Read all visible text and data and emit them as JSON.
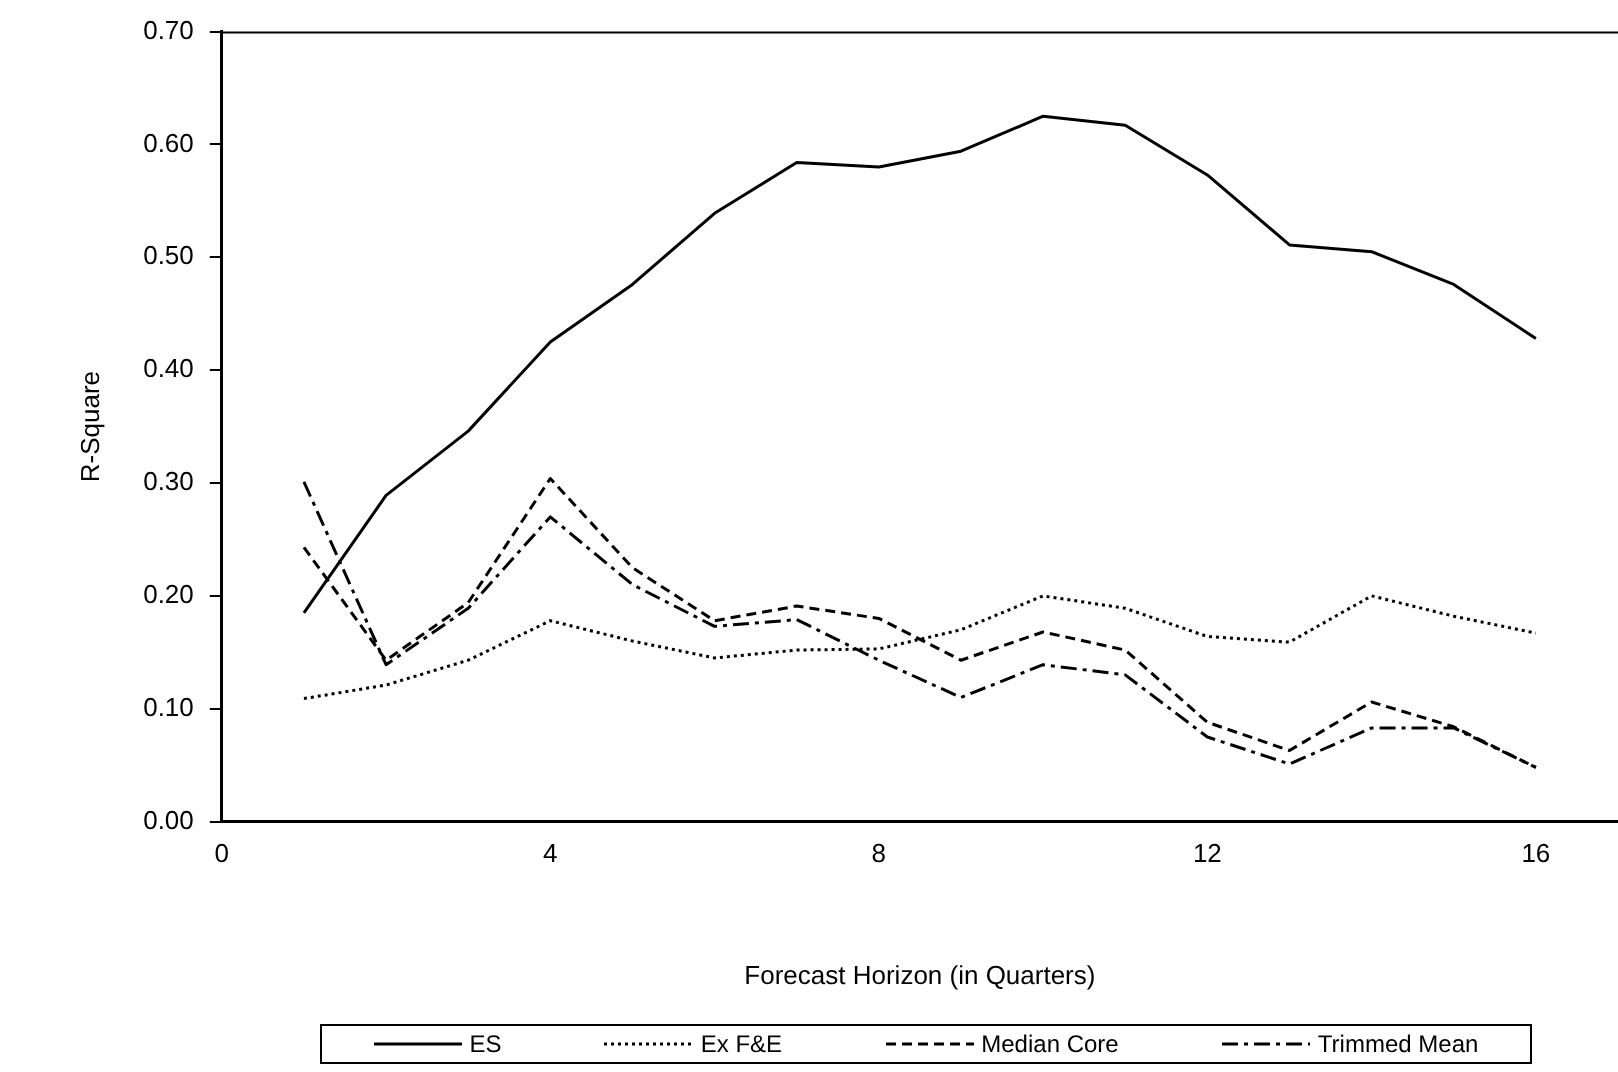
{
  "chart_data": {
    "type": "line",
    "xlabel": "Forecast Horizon (in Quarters)",
    "ylabel": "R-Square",
    "x": [
      1,
      2,
      3,
      4,
      5,
      6,
      7,
      8,
      9,
      10,
      11,
      12,
      13,
      14,
      15,
      16
    ],
    "xlim": [
      0,
      17
    ],
    "xticks": [
      0,
      4,
      8,
      12,
      16
    ],
    "ylim": [
      0,
      0.7
    ],
    "yticks": [
      {
        "value": 0,
        "label": "0.00"
      },
      {
        "value": 0.1,
        "label": "0.10"
      },
      {
        "value": 0.2,
        "label": "0.20"
      },
      {
        "value": 0.3,
        "label": "0.30"
      },
      {
        "value": 0.4,
        "label": "0.40"
      },
      {
        "value": 0.5,
        "label": "0.50"
      },
      {
        "value": 0.6,
        "label": "0.60"
      },
      {
        "value": 0.7,
        "label": "0.70"
      }
    ],
    "grid": false,
    "legend": "bottom",
    "marker": "none",
    "series": [
      {
        "name": "ES",
        "color": "#000000",
        "line_style": "solid",
        "values": [
          0.185,
          0.289,
          0.346,
          0.425,
          0.476,
          0.539,
          0.584,
          0.58,
          0.594,
          0.625,
          0.617,
          0.573,
          0.511,
          0.505,
          0.476,
          0.428
        ]
      },
      {
        "name": "Ex F&E",
        "color": "#000000",
        "line_style": "dotted",
        "values": [
          0.109,
          0.121,
          0.143,
          0.178,
          0.16,
          0.145,
          0.152,
          0.153,
          0.17,
          0.2,
          0.189,
          0.164,
          0.159,
          0.2,
          0.182,
          0.167
        ]
      },
      {
        "name": "Median Core",
        "color": "#000000",
        "line_style": "dashed",
        "values": [
          0.243,
          0.143,
          0.194,
          0.304,
          0.225,
          0.178,
          0.191,
          0.18,
          0.143,
          0.168,
          0.152,
          0.088,
          0.063,
          0.106,
          0.084,
          0.048
        ]
      },
      {
        "name": "Trimmed Mean",
        "color": "#000000",
        "line_style": "dashdot",
        "values": [
          0.301,
          0.139,
          0.189,
          0.27,
          0.21,
          0.173,
          0.179,
          0.143,
          0.11,
          0.139,
          0.13,
          0.075,
          0.051,
          0.083,
          0.083,
          0.048
        ]
      }
    ]
  }
}
